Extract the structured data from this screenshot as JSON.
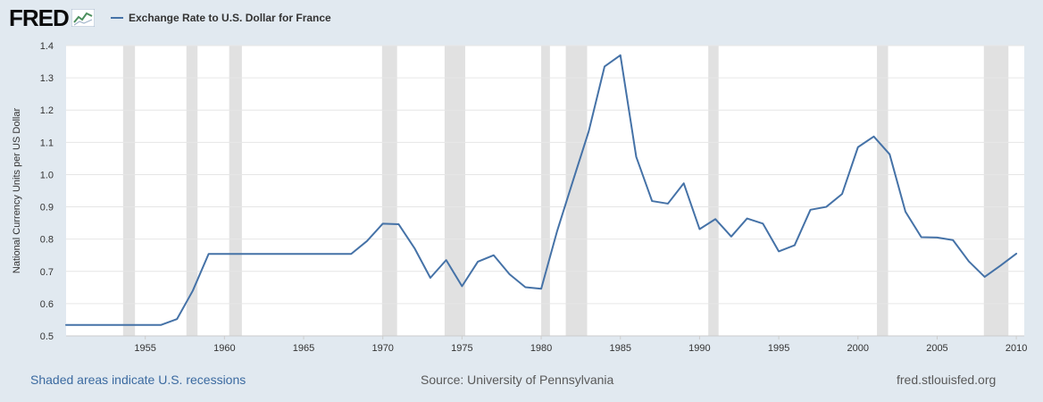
{
  "header": {
    "logo_text": "FRED",
    "logo_icon": "trend-line-icon",
    "legend_label": "Exchange Rate to U.S. Dollar for France"
  },
  "footer": {
    "note": "Shaded areas indicate U.S. recessions",
    "source": "Source: University of Pennsylvania",
    "site": "fred.stlouisfed.org"
  },
  "colors": {
    "line": "#4572a7",
    "recession": "#e1e1e1",
    "plot_bg": "#ffffff",
    "page_bg": "#e1e9f0",
    "grid": "#e6e6e6"
  },
  "chart_data": {
    "type": "line",
    "title": "",
    "ylabel": "National Currency Units per US Dollar",
    "xlabel": "",
    "xlim": [
      1950,
      2010.5
    ],
    "ylim": [
      0.5,
      1.4
    ],
    "yticks": [
      "0.5",
      "0.6",
      "0.7",
      "0.8",
      "0.9",
      "1.0",
      "1.1",
      "1.2",
      "1.3",
      "1.4"
    ],
    "xticks": [
      "1955",
      "1960",
      "1965",
      "1970",
      "1975",
      "1980",
      "1985",
      "1990",
      "1995",
      "2000",
      "2005",
      "2010"
    ],
    "grid": true,
    "recessions": [
      [
        1953.6,
        1954.35
      ],
      [
        1957.6,
        1958.3
      ],
      [
        1960.3,
        1961.1
      ],
      [
        1969.95,
        1970.9
      ],
      [
        1973.9,
        1975.2
      ],
      [
        1980.0,
        1980.55
      ],
      [
        1981.55,
        1982.9
      ],
      [
        1990.55,
        1991.2
      ],
      [
        2001.2,
        2001.9
      ],
      [
        2007.95,
        2009.5
      ]
    ],
    "series": [
      {
        "name": "Exchange Rate to U.S. Dollar for France",
        "x": [
          1950,
          1951,
          1952,
          1953,
          1954,
          1955,
          1956,
          1957,
          1958,
          1959,
          1960,
          1961,
          1962,
          1963,
          1964,
          1965,
          1966,
          1967,
          1968,
          1969,
          1970,
          1971,
          1972,
          1973,
          1974,
          1975,
          1976,
          1977,
          1978,
          1979,
          1980,
          1981,
          1982,
          1983,
          1984,
          1985,
          1986,
          1987,
          1988,
          1989,
          1990,
          1991,
          1992,
          1993,
          1994,
          1995,
          1996,
          1997,
          1998,
          1999,
          2000,
          2001,
          2002,
          2003,
          2004,
          2005,
          2006,
          2007,
          2008,
          2009,
          2010
        ],
        "values": [
          0.534,
          0.534,
          0.534,
          0.534,
          0.534,
          0.534,
          0.534,
          0.552,
          0.64,
          0.754,
          0.754,
          0.754,
          0.754,
          0.754,
          0.754,
          0.754,
          0.754,
          0.754,
          0.754,
          0.794,
          0.848,
          0.846,
          0.772,
          0.68,
          0.735,
          0.654,
          0.73,
          0.75,
          0.691,
          0.651,
          0.646,
          0.824,
          0.98,
          1.134,
          1.335,
          1.37,
          1.055,
          0.918,
          0.91,
          0.973,
          0.831,
          0.862,
          0.808,
          0.864,
          0.848,
          0.762,
          0.781,
          0.891,
          0.9,
          0.94,
          1.085,
          1.118,
          1.063,
          0.885,
          0.806,
          0.805,
          0.797,
          0.731,
          0.683,
          0.718,
          0.755
        ]
      }
    ]
  }
}
